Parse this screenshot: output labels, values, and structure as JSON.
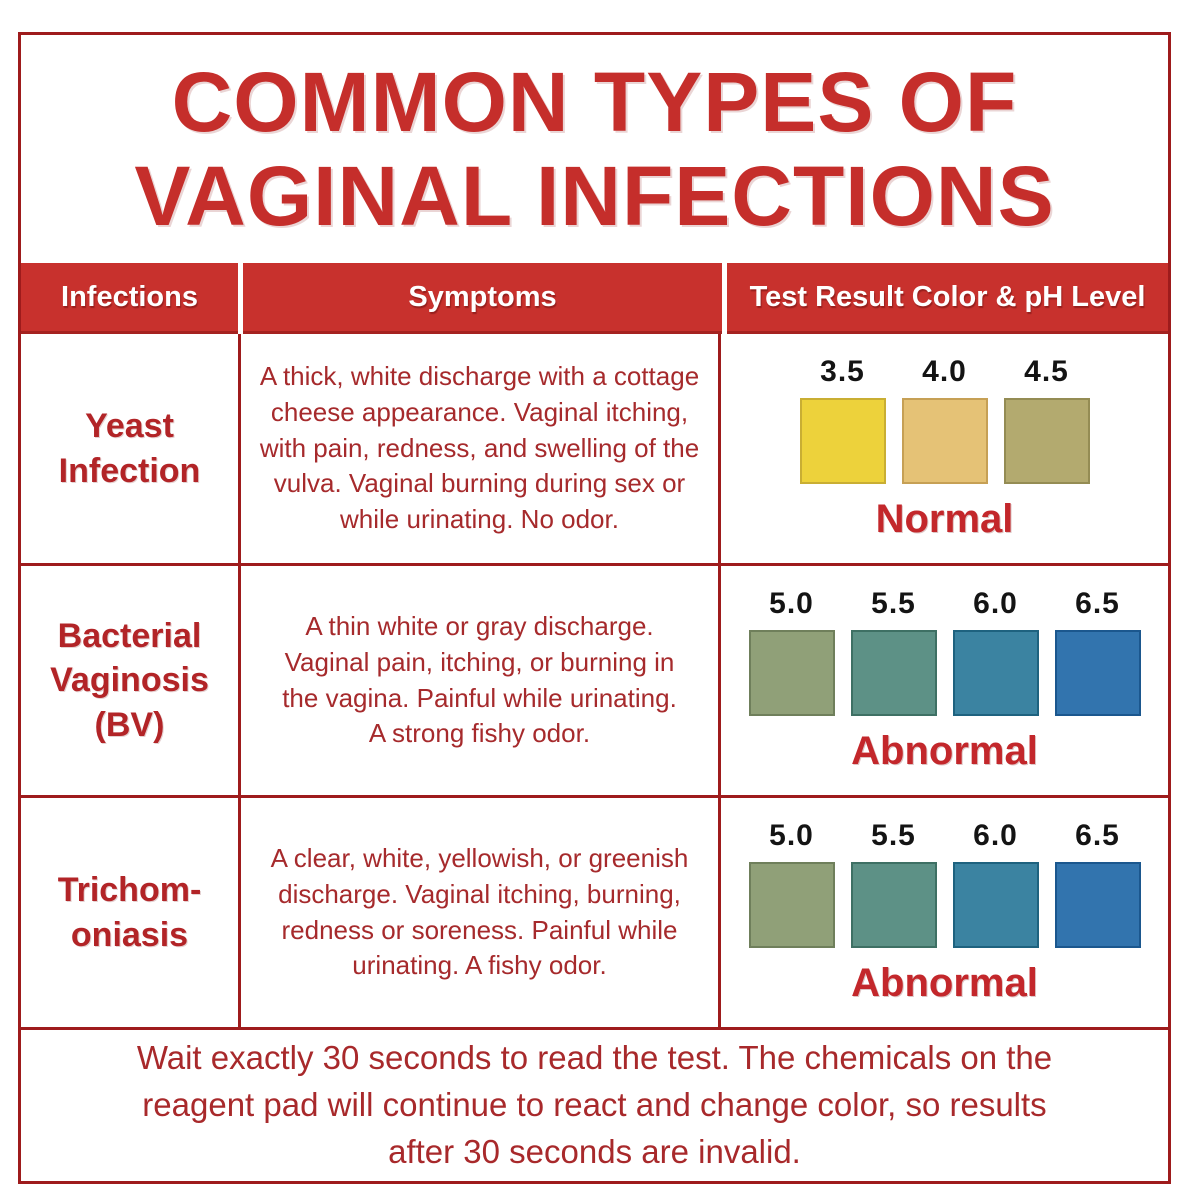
{
  "title": {
    "line1": "COMMON TYPES OF",
    "line2": "VAGINAL INFECTIONS"
  },
  "colors": {
    "title_red": "#C52E2B",
    "header_bg_red": "#C8312D",
    "grid_dark_red": "#9E1B1C",
    "body_text_red": "#A62A2C",
    "ph_label_black": "#141414"
  },
  "table": {
    "headers": [
      {
        "label": "Infections"
      },
      {
        "label": "Symptoms"
      },
      {
        "label": "Test Result Color & pH Level"
      }
    ],
    "rows": [
      {
        "infection": "Yeast\nInfection",
        "symptoms": "A thick, white discharge with a cottage\ncheese appearance. Vaginal itching,\nwith pain, redness, and swelling of the\nvulva. Vaginal burning during sex or\nwhile urinating. No odor.",
        "verdict": "Normal",
        "swatches": [
          {
            "ph": "3.5",
            "color": "#EDD23B",
            "border": "#C9AE33"
          },
          {
            "ph": "4.0",
            "color": "#E5C276",
            "border": "#C6A055"
          },
          {
            "ph": "4.5",
            "color": "#B3AA6F",
            "border": "#948C54"
          }
        ]
      },
      {
        "infection": "Bacterial\nVaginosis\n(BV)",
        "symptoms": "A thin white or gray discharge.\nVaginal pain, itching, or burning in\nthe vagina. Painful while urinating.\nA strong fishy odor.",
        "verdict": "Abnormal",
        "swatches": [
          {
            "ph": "5.0",
            "color": "#90A078",
            "border": "#6F7F5B"
          },
          {
            "ph": "5.5",
            "color": "#5D9186",
            "border": "#3E7064"
          },
          {
            "ph": "6.0",
            "color": "#3B83A1",
            "border": "#1E627F"
          },
          {
            "ph": "6.5",
            "color": "#3274AE",
            "border": "#1B578E"
          }
        ]
      },
      {
        "infection": "Trichom-\noniasis",
        "symptoms": "A clear, white, yellowish, or greenish\ndischarge. Vaginal itching, burning,\nredness or soreness. Painful while\nurinating. A fishy odor.",
        "verdict": "Abnormal",
        "swatches": [
          {
            "ph": "5.0",
            "color": "#90A078",
            "border": "#6F7F5B"
          },
          {
            "ph": "5.5",
            "color": "#5D9186",
            "border": "#3E7064"
          },
          {
            "ph": "6.0",
            "color": "#3B83A1",
            "border": "#1E627F"
          },
          {
            "ph": "6.5",
            "color": "#3274AE",
            "border": "#1B578E"
          }
        ]
      }
    ]
  },
  "footer": {
    "note": "Wait exactly 30 seconds to read the test. The chemicals on the\nreagent pad will continue to react and change color, so results\nafter 30 seconds are invalid."
  }
}
